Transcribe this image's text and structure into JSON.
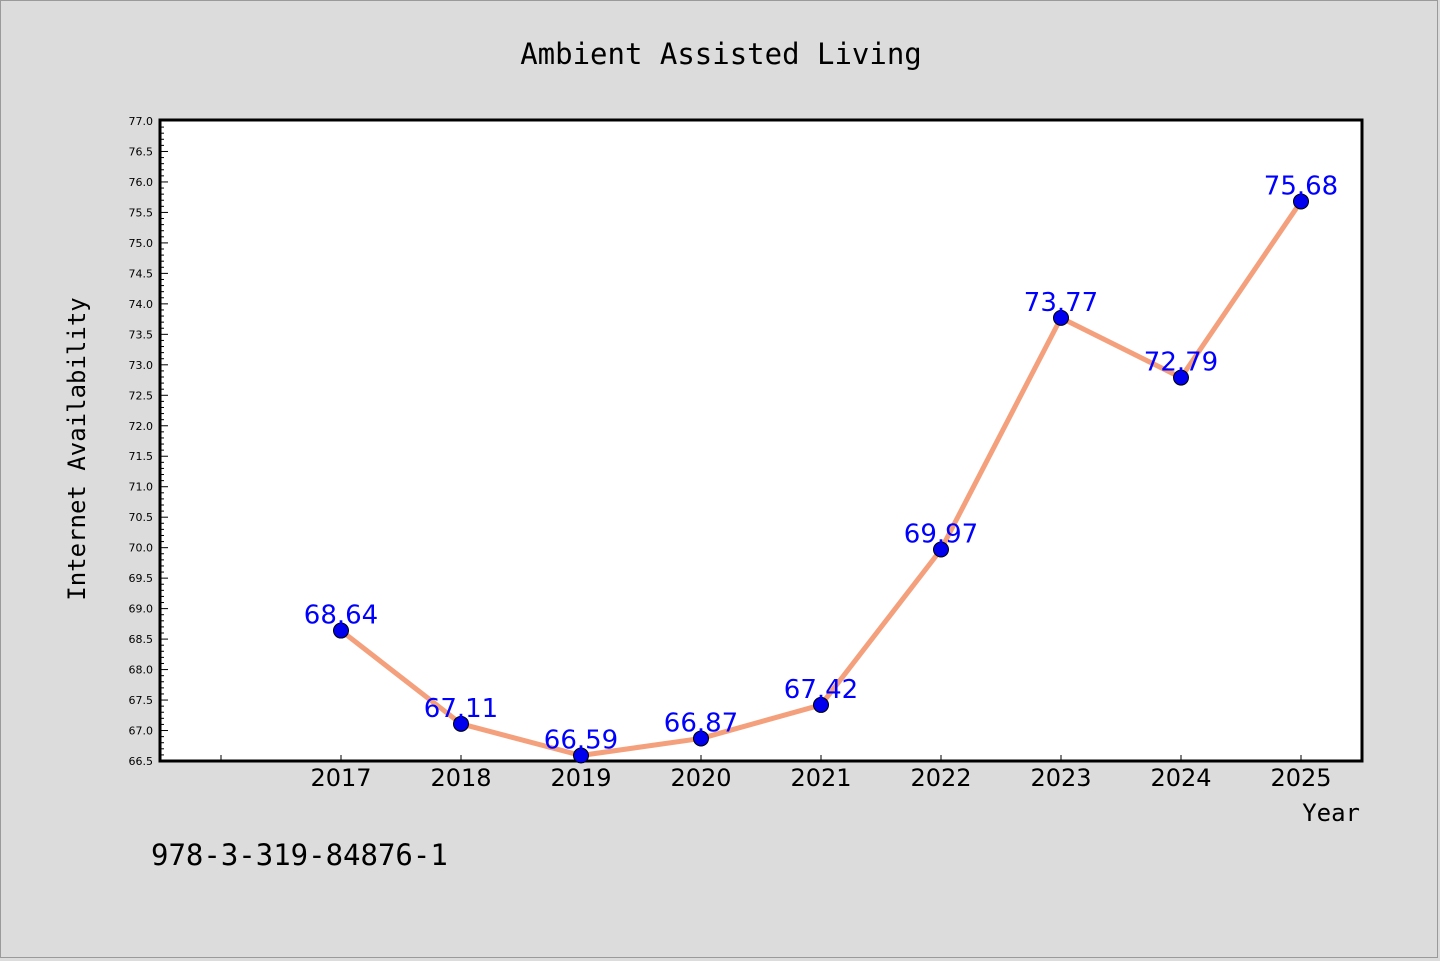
{
  "chart_data": {
    "type": "line",
    "title": "Ambient Assisted Living",
    "xlabel": "Year",
    "ylabel": "Internet Availability",
    "categories": [
      "2017",
      "2018",
      "2019",
      "2020",
      "2021",
      "2022",
      "2023",
      "2024",
      "2025"
    ],
    "series": [
      {
        "values": [
          68.64,
          67.11,
          66.59,
          66.87,
          67.42,
          69.97,
          73.77,
          72.79,
          75.68
        ],
        "data_labels": [
          "68.64",
          "67.11",
          "66.59",
          "66.87",
          "67.42",
          "69.97",
          "73.77",
          "72.79",
          "75.68"
        ],
        "line_color": "#f4a07c",
        "marker_color": "#0000ee"
      }
    ],
    "ylim": [
      66.5,
      77.0
    ],
    "yticks": [
      "66.5",
      "67.0",
      "67.5",
      "68.0",
      "68.5",
      "69.0",
      "69.5",
      "70.0",
      "70.5",
      "71.0",
      "71.5",
      "72.0",
      "72.5",
      "73.0",
      "73.5",
      "74.0",
      "74.5",
      "75.0",
      "75.5",
      "76.0",
      "76.5",
      "77.0"
    ],
    "grid": false,
    "legend": "none",
    "label_color": "#0000ff"
  },
  "footer_text": "978-3-319-84876-1"
}
